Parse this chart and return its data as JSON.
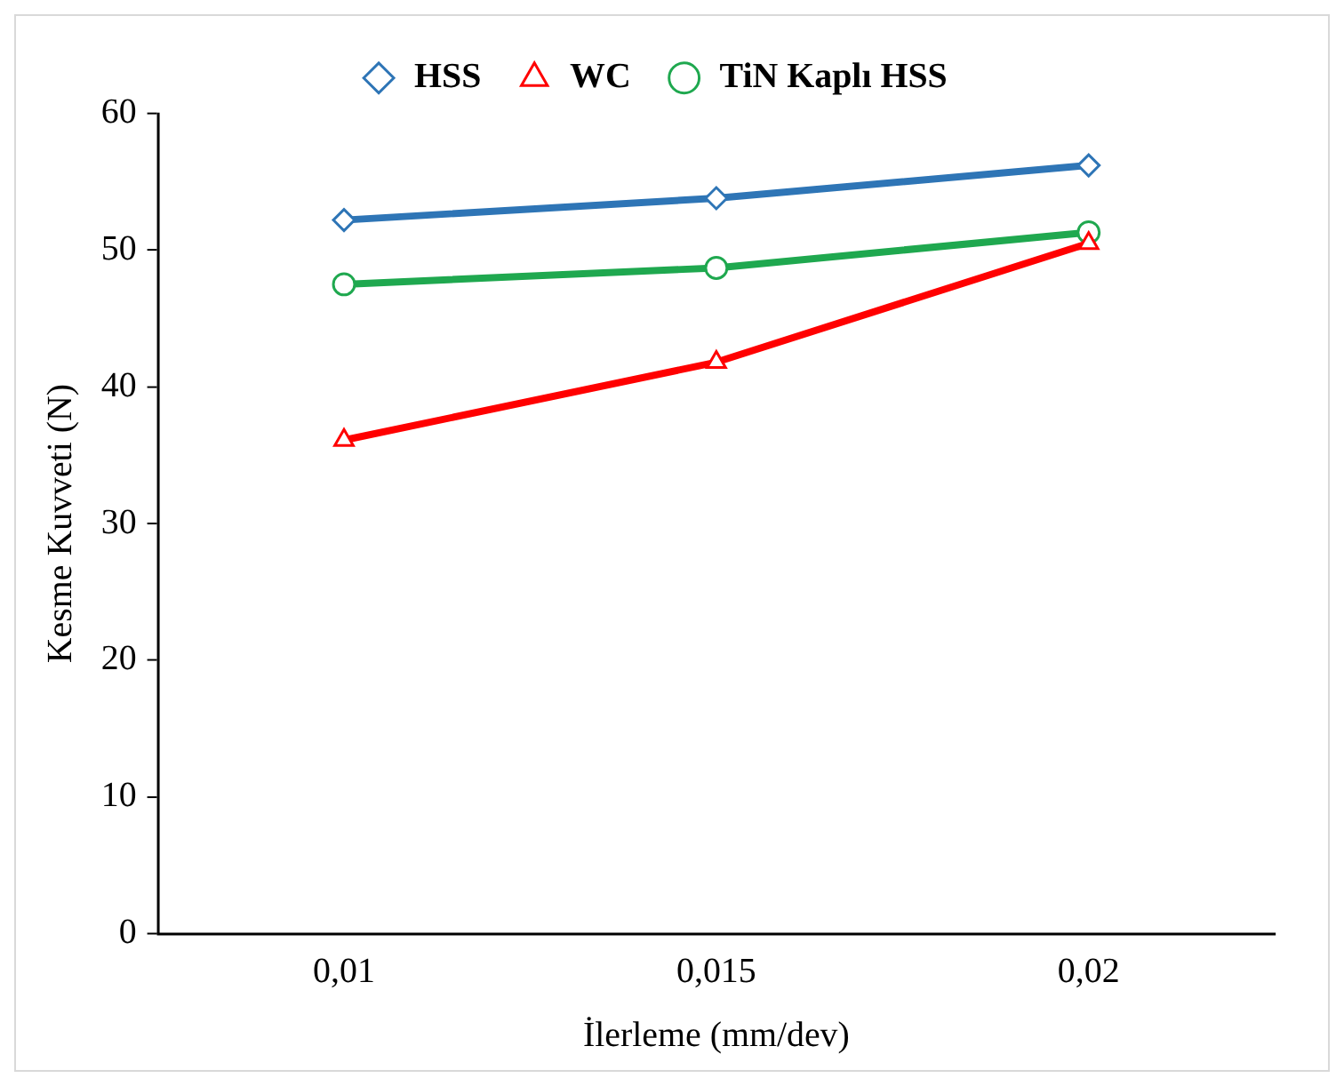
{
  "chart_data": {
    "type": "line",
    "xlabel": "İlerleme (mm/dev)",
    "ylabel": "Kesme Kuvveti (N)",
    "categories": [
      "0,01",
      "0,015",
      "0,02"
    ],
    "series": [
      {
        "name": "HSS",
        "color": "#2e75b6",
        "values": [
          52.2,
          53.8,
          56.2
        ],
        "marker": "diamond"
      },
      {
        "name": "WC",
        "color": "#ff0000",
        "values": [
          36.1,
          41.8,
          50.5
        ],
        "marker": "triangle"
      },
      {
        "name": "TiN Kaplı HSS",
        "color": "#1fa84f",
        "values": [
          47.5,
          48.7,
          51.3
        ],
        "marker": "circle"
      }
    ],
    "ylim": [
      0,
      60
    ],
    "yticks": [
      0,
      10,
      20,
      30,
      40,
      50,
      60
    ],
    "grid": false,
    "legend": "top",
    "line_style": "solid"
  }
}
